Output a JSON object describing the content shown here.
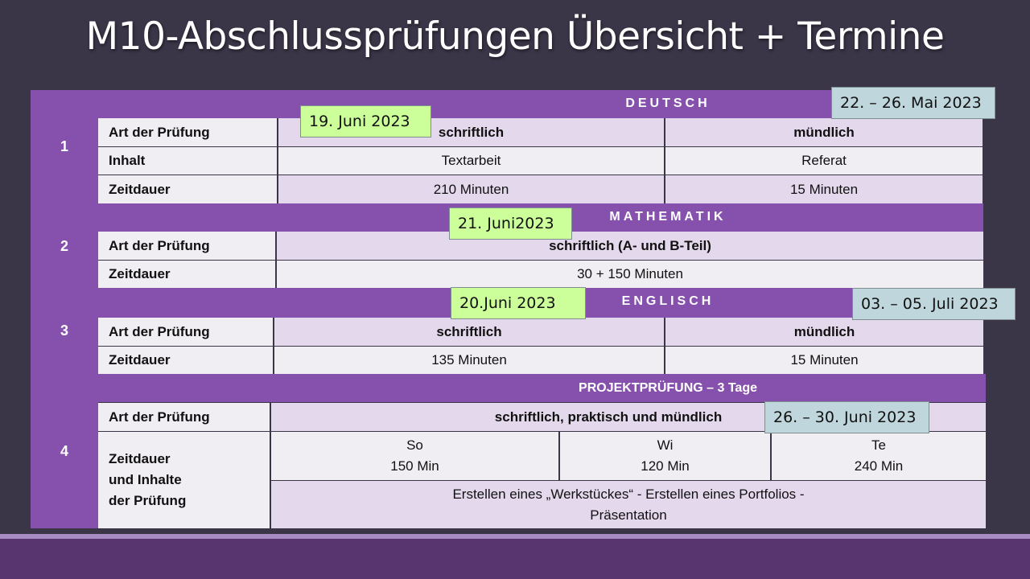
{
  "title": "M10-Abschlussprüfungen Übersicht + Termine",
  "deutsch": {
    "num": "1",
    "header": "DEUTSCH",
    "date_written": "19. Juni 2023",
    "date_oral": "22. – 26. Mai 2023",
    "rows": [
      {
        "label": "Art der Prüfung",
        "a": "schriftlich",
        "b": "mündlich"
      },
      {
        "label": "Inhalt",
        "a": "Textarbeit",
        "b": "Referat"
      },
      {
        "label": "Zeitdauer",
        "a": "210 Minuten",
        "b": "15 Minuten"
      }
    ]
  },
  "mathematik": {
    "num": "2",
    "header": "MATHEMATIK",
    "date_written": "21. Juni2023",
    "rows": [
      {
        "label": "Art der Prüfung",
        "a": "schriftlich  (A- und B-Teil)"
      },
      {
        "label": "Zeitdauer",
        "a": "30 + 150 Minuten"
      }
    ]
  },
  "englisch": {
    "num": "3",
    "header": "ENGLISCH",
    "date_written": "20.Juni 2023",
    "date_oral": "03. – 05. Juli 2023",
    "rows": [
      {
        "label": "Art der Prüfung",
        "a": "schriftlich",
        "b": "mündlich"
      },
      {
        "label": "Zeitdauer",
        "a": "135 Minuten",
        "b": "15 Minuten"
      }
    ]
  },
  "projekt": {
    "num": "4",
    "header": "PROJEKTPRÜFUNG  – 3 Tage",
    "date": "26. – 30. Juni 2023",
    "art_label": "Art der Prüfung",
    "art_value": "schriftlich,  praktisch  und  mündlich",
    "zeit_label_1": "Zeitdauer",
    "zeit_label_2": "und Inhalte",
    "zeit_label_3": "der Prüfung",
    "days": [
      {
        "day": "So",
        "duration": "150 Min"
      },
      {
        "day": "Wi",
        "duration": "120 Min"
      },
      {
        "day": "Te",
        "duration": "240 Min"
      }
    ],
    "content_line1": "Erstellen eines „Werkstückes“ -  Erstellen eines Portfolios -",
    "content_line2": "Präsentation"
  }
}
